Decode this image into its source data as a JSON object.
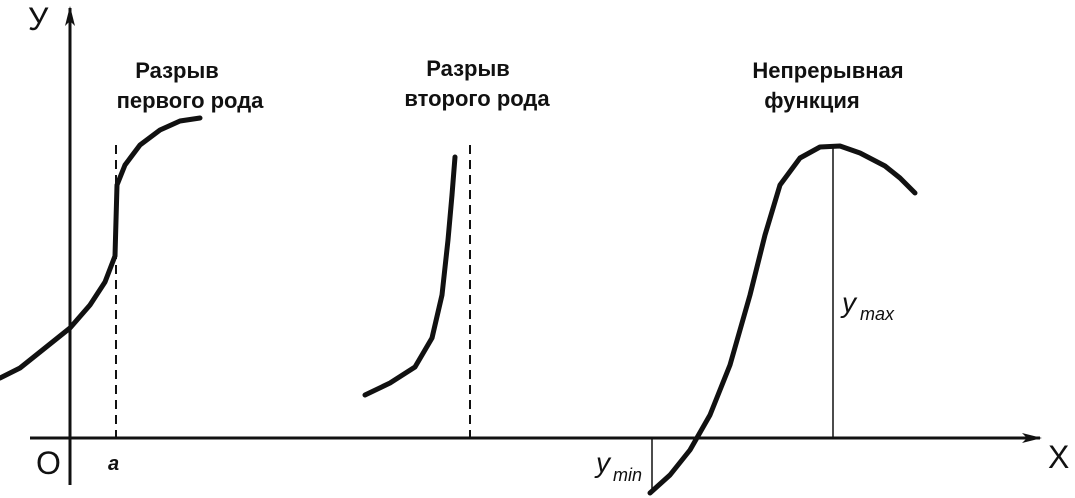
{
  "axes": {
    "y_label": "У",
    "x_label": "X",
    "origin_label": "O",
    "a_label": "a"
  },
  "captions": [
    {
      "lines": [
        "Разрыв",
        "первого рода"
      ]
    },
    {
      "lines": [
        "Разрыв",
        "второго рода"
      ]
    },
    {
      "lines": [
        "Непрерывная",
        "функция"
      ]
    }
  ],
  "y_max": {
    "base": "y",
    "sub": "max"
  },
  "y_min": {
    "base": "y",
    "sub": "min"
  }
}
